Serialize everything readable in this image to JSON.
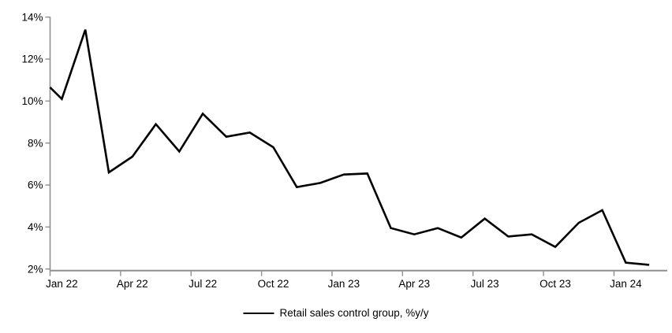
{
  "colors": {
    "series_line": "#000000",
    "axis": "#8f8f8f",
    "tick_label": "#000000",
    "background": "#ffffff"
  },
  "legend": {
    "label": "Retail sales control group, %y/y"
  },
  "chart_data": {
    "type": "line",
    "title": "",
    "xlabel": "",
    "ylabel": "",
    "ylim": [
      2,
      14
    ],
    "y_tick_step": 2,
    "grid": false,
    "legend_position": "bottom-center",
    "y_ticks": [
      {
        "label": "14%",
        "value": 14
      },
      {
        "label": "12%",
        "value": 12
      },
      {
        "label": "10%",
        "value": 10
      },
      {
        "label": "8%",
        "value": 8
      },
      {
        "label": "6%",
        "value": 6
      },
      {
        "label": "4%",
        "value": 4
      },
      {
        "label": "2%",
        "value": 2
      }
    ],
    "x_tick_labels": [
      {
        "label": "Jan 22",
        "month_index": 0
      },
      {
        "label": "Apr 22",
        "month_index": 3
      },
      {
        "label": "Jul 22",
        "month_index": 6
      },
      {
        "label": "Oct 22",
        "month_index": 9
      },
      {
        "label": "Jan 23",
        "month_index": 12
      },
      {
        "label": "Apr 23",
        "month_index": 15
      },
      {
        "label": "Jul 23",
        "month_index": 18
      },
      {
        "label": "Oct 23",
        "month_index": 21
      },
      {
        "label": "Jan 24",
        "month_index": 24
      }
    ],
    "leading_edge_point": {
      "note": "line enters plot at the left axis edge, half a slot before Jan 22",
      "value": 10.65,
      "x_unit": -0.5
    },
    "series": [
      {
        "name": "Retail sales control group, %y/y",
        "categories": [
          "Jan 22",
          "Feb 22",
          "Mar 22",
          "Apr 22",
          "May 22",
          "Jun 22",
          "Jul 22",
          "Aug 22",
          "Sep 22",
          "Oct 22",
          "Nov 22",
          "Dec 22",
          "Jan 23",
          "Feb 23",
          "Mar 23",
          "Apr 23",
          "May 23",
          "Jun 23",
          "Jul 23",
          "Aug 23",
          "Sep 23",
          "Oct 23",
          "Nov 23",
          "Dec 23",
          "Jan 24",
          "Feb 24"
        ],
        "values": [
          10.1,
          13.4,
          6.6,
          7.35,
          8.9,
          7.6,
          9.4,
          8.3,
          8.5,
          7.8,
          5.9,
          6.1,
          6.5,
          6.55,
          3.95,
          3.65,
          3.95,
          3.5,
          4.4,
          3.55,
          3.65,
          3.05,
          4.2,
          4.8,
          2.3,
          2.2
        ]
      }
    ]
  }
}
